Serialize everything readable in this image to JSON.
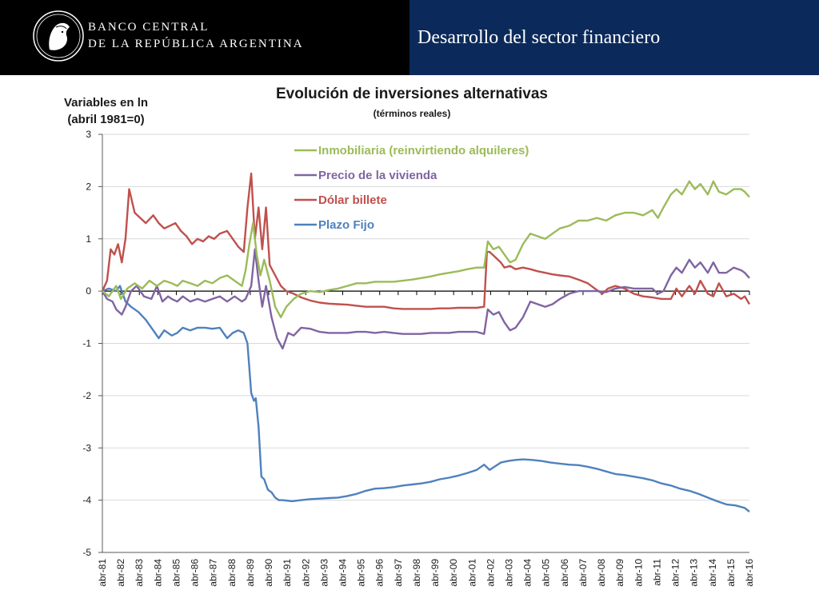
{
  "header": {
    "bank_line1": "BANCO CENTRAL",
    "bank_line2": "DE LA REPÚBLICA ARGENTINA",
    "page_title": "Desarrollo del sector financiero",
    "colors": {
      "left_bg": "#000000",
      "right_bg": "#0b2a5b"
    }
  },
  "chart_data": {
    "type": "line",
    "title": "Evolución de inversiones alternativas",
    "subtitle": "(términos reales)",
    "ylabel_line1": "Variables en ln",
    "ylabel_line2": "(abril 1981=0)",
    "ylim": [
      -5,
      3
    ],
    "yticks": [
      3,
      2,
      1,
      0,
      -1,
      -2,
      -3,
      -4,
      -5
    ],
    "xlim": [
      1981.25,
      2016.25
    ],
    "xticks": [
      "abr-81",
      "abr-82",
      "abr-83",
      "abr-84",
      "abr-85",
      "abr-86",
      "abr-87",
      "abr-88",
      "abr-89",
      "abr-90",
      "abr-91",
      "abr-92",
      "abr-93",
      "abr-94",
      "abr-95",
      "abr-96",
      "abr-97",
      "abr-98",
      "abr-99",
      "abr-00",
      "abr-01",
      "abr-02",
      "abr-03",
      "abr-04",
      "abr-05",
      "abr-06",
      "abr-07",
      "abr-08",
      "abr-09",
      "abr-10",
      "abr-11",
      "abr-12",
      "abr-13",
      "abr-14",
      "abr-15",
      "abr-16"
    ],
    "grid": "horizontal",
    "legend_position": "top-left",
    "series": [
      {
        "name": "Inmobiliaria (reinvirtiendo alquileres)",
        "color": "#9bbb59",
        "x": [
          1981.25,
          1981.6,
          1982.0,
          1982.25,
          1982.6,
          1983.0,
          1983.4,
          1983.8,
          1984.2,
          1984.6,
          1985.0,
          1985.3,
          1985.6,
          1986.0,
          1986.4,
          1986.8,
          1987.2,
          1987.6,
          1988.0,
          1988.4,
          1988.8,
          1989.0,
          1989.2,
          1989.4,
          1989.6,
          1989.8,
          1990.0,
          1990.3,
          1990.6,
          1990.9,
          1991.2,
          1991.6,
          1992.0,
          1992.5,
          1993.0,
          1993.5,
          1994.0,
          1994.5,
          1995.0,
          1995.5,
          1996.0,
          1996.5,
          1997.0,
          1997.5,
          1998.0,
          1998.5,
          1999.0,
          1999.5,
          2000.0,
          2000.5,
          2001.0,
          2001.5,
          2001.9,
          2002.1,
          2002.4,
          2002.7,
          2003.0,
          2003.3,
          2003.6,
          2004.0,
          2004.4,
          2004.8,
          2005.2,
          2005.6,
          2006.0,
          2006.5,
          2007.0,
          2007.5,
          2008.0,
          2008.5,
          2009.0,
          2009.5,
          2010.0,
          2010.5,
          2011.0,
          2011.3,
          2011.6,
          2012.0,
          2012.3,
          2012.6,
          2013.0,
          2013.3,
          2013.6,
          2014.0,
          2014.3,
          2014.6,
          2015.0,
          2015.4,
          2015.8,
          2016.0,
          2016.25
        ],
        "y": [
          0,
          -0.1,
          0.1,
          -0.15,
          0.05,
          0.15,
          0.05,
          0.2,
          0.1,
          0.2,
          0.15,
          0.1,
          0.2,
          0.15,
          0.1,
          0.2,
          0.15,
          0.25,
          0.3,
          0.2,
          0.1,
          0.4,
          0.9,
          1.3,
          0.7,
          0.3,
          0.6,
          0.2,
          -0.3,
          -0.5,
          -0.3,
          -0.15,
          -0.05,
          0.0,
          -0.02,
          0.02,
          0.05,
          0.1,
          0.15,
          0.15,
          0.18,
          0.18,
          0.18,
          0.2,
          0.22,
          0.25,
          0.28,
          0.32,
          0.35,
          0.38,
          0.42,
          0.45,
          0.45,
          0.95,
          0.8,
          0.85,
          0.7,
          0.55,
          0.6,
          0.9,
          1.1,
          1.05,
          1.0,
          1.1,
          1.2,
          1.25,
          1.35,
          1.35,
          1.4,
          1.35,
          1.45,
          1.5,
          1.5,
          1.45,
          1.55,
          1.4,
          1.6,
          1.85,
          1.95,
          1.85,
          2.1,
          1.95,
          2.05,
          1.85,
          2.1,
          1.9,
          1.85,
          1.95,
          1.95,
          1.9,
          1.8
        ]
      },
      {
        "name": "Precio de la vivienda",
        "color": "#8064a2",
        "x": [
          1981.25,
          1981.5,
          1981.8,
          1982.0,
          1982.3,
          1982.5,
          1982.8,
          1983.1,
          1983.5,
          1983.9,
          1984.2,
          1984.5,
          1984.8,
          1985.0,
          1985.3,
          1985.6,
          1986.0,
          1986.4,
          1986.8,
          1987.2,
          1987.6,
          1988.0,
          1988.4,
          1988.8,
          1989.0,
          1989.3,
          1989.5,
          1989.7,
          1989.9,
          1990.1,
          1990.4,
          1990.7,
          1991.0,
          1991.3,
          1991.6,
          1992.0,
          1992.5,
          1993.0,
          1993.5,
          1994.0,
          1994.5,
          1995.0,
          1995.5,
          1996.0,
          1996.5,
          1997.0,
          1997.5,
          1998.0,
          1998.5,
          1999.0,
          1999.5,
          2000.0,
          2000.5,
          2001.0,
          2001.5,
          2001.9,
          2002.1,
          2002.4,
          2002.7,
          2003.0,
          2003.3,
          2003.6,
          2004.0,
          2004.4,
          2004.8,
          2005.2,
          2005.6,
          2006.0,
          2006.5,
          2007.0,
          2007.5,
          2008.0,
          2008.5,
          2009.0,
          2009.5,
          2010.0,
          2010.5,
          2011.0,
          2011.3,
          2011.6,
          2012.0,
          2012.3,
          2012.6,
          2013.0,
          2013.3,
          2013.6,
          2014.0,
          2014.3,
          2014.6,
          2015.0,
          2015.4,
          2015.8,
          2016.0,
          2016.25
        ],
        "y": [
          0,
          -0.15,
          -0.2,
          -0.35,
          -0.45,
          -0.3,
          0.0,
          0.1,
          -0.1,
          -0.15,
          0.1,
          -0.2,
          -0.1,
          -0.15,
          -0.2,
          -0.1,
          -0.2,
          -0.15,
          -0.2,
          -0.15,
          -0.1,
          -0.2,
          -0.1,
          -0.2,
          -0.15,
          0.1,
          0.8,
          0.2,
          -0.3,
          0.1,
          -0.5,
          -0.9,
          -1.1,
          -0.8,
          -0.85,
          -0.7,
          -0.72,
          -0.78,
          -0.8,
          -0.8,
          -0.8,
          -0.78,
          -0.78,
          -0.8,
          -0.78,
          -0.8,
          -0.82,
          -0.82,
          -0.82,
          -0.8,
          -0.8,
          -0.8,
          -0.78,
          -0.78,
          -0.78,
          -0.82,
          -0.35,
          -0.45,
          -0.4,
          -0.6,
          -0.75,
          -0.7,
          -0.5,
          -0.2,
          -0.25,
          -0.3,
          -0.25,
          -0.15,
          -0.05,
          0.0,
          0.0,
          0.0,
          -0.02,
          0.05,
          0.08,
          0.05,
          0.05,
          0.05,
          -0.05,
          0.0,
          0.3,
          0.45,
          0.35,
          0.6,
          0.45,
          0.55,
          0.35,
          0.55,
          0.35,
          0.35,
          0.45,
          0.4,
          0.35,
          0.25
        ]
      },
      {
        "name": "Dólar billete",
        "color": "#c0504d",
        "x": [
          1981.25,
          1981.5,
          1981.7,
          1981.9,
          1982.1,
          1982.3,
          1982.5,
          1982.7,
          1983.0,
          1983.3,
          1983.6,
          1984.0,
          1984.3,
          1984.6,
          1984.9,
          1985.2,
          1985.5,
          1985.8,
          1986.1,
          1986.4,
          1986.7,
          1987.0,
          1987.3,
          1987.6,
          1988.0,
          1988.3,
          1988.6,
          1988.9,
          1989.1,
          1989.3,
          1989.5,
          1989.7,
          1989.9,
          1990.1,
          1990.3,
          1990.6,
          1990.9,
          1991.2,
          1991.6,
          1992.0,
          1992.5,
          1993.0,
          1993.5,
          1994.0,
          1994.5,
          1995.0,
          1995.5,
          1996.0,
          1996.5,
          1997.0,
          1997.5,
          1998.0,
          1998.5,
          1999.0,
          1999.5,
          2000.0,
          2000.5,
          2001.0,
          2001.5,
          2001.9,
          2002.05,
          2002.2,
          2002.5,
          2002.8,
          2003.0,
          2003.3,
          2003.6,
          2004.0,
          2004.4,
          2004.8,
          2005.2,
          2005.6,
          2006.0,
          2006.5,
          2007.0,
          2007.5,
          2008.0,
          2008.3,
          2008.6,
          2009.0,
          2009.5,
          2010.0,
          2010.5,
          2011.0,
          2011.5,
          2012.0,
          2012.3,
          2012.6,
          2013.0,
          2013.3,
          2013.6,
          2014.0,
          2014.3,
          2014.6,
          2015.0,
          2015.4,
          2015.8,
          2016.0,
          2016.25
        ],
        "y": [
          0,
          0.2,
          0.8,
          0.7,
          0.9,
          0.55,
          1.0,
          1.95,
          1.5,
          1.4,
          1.3,
          1.45,
          1.3,
          1.2,
          1.25,
          1.3,
          1.15,
          1.05,
          0.9,
          1.0,
          0.95,
          1.05,
          1.0,
          1.1,
          1.15,
          1.0,
          0.85,
          0.75,
          1.6,
          2.25,
          1.0,
          1.6,
          0.8,
          1.6,
          0.5,
          0.3,
          0.1,
          0.0,
          -0.05,
          -0.12,
          -0.18,
          -0.22,
          -0.24,
          -0.25,
          -0.26,
          -0.28,
          -0.3,
          -0.3,
          -0.3,
          -0.33,
          -0.34,
          -0.34,
          -0.34,
          -0.34,
          -0.33,
          -0.33,
          -0.32,
          -0.32,
          -0.32,
          -0.3,
          0.75,
          0.75,
          0.65,
          0.55,
          0.45,
          0.48,
          0.42,
          0.45,
          0.42,
          0.38,
          0.35,
          0.32,
          0.3,
          0.28,
          0.22,
          0.15,
          0.02,
          -0.05,
          0.05,
          0.1,
          0.05,
          -0.05,
          -0.1,
          -0.12,
          -0.15,
          -0.15,
          0.05,
          -0.1,
          0.1,
          -0.05,
          0.2,
          -0.05,
          -0.1,
          0.15,
          -0.1,
          -0.05,
          -0.15,
          -0.1,
          -0.25
        ]
      },
      {
        "name": "Plazo Fijo",
        "color": "#4f81bd",
        "x": [
          1981.25,
          1981.6,
          1982.0,
          1982.2,
          1982.5,
          1982.8,
          1983.2,
          1983.6,
          1984.0,
          1984.3,
          1984.6,
          1985.0,
          1985.3,
          1985.6,
          1986.0,
          1986.4,
          1986.8,
          1987.2,
          1987.6,
          1988.0,
          1988.3,
          1988.6,
          1988.9,
          1989.1,
          1989.3,
          1989.45,
          1989.55,
          1989.7,
          1989.85,
          1990.0,
          1990.2,
          1990.4,
          1990.6,
          1990.8,
          1991.0,
          1991.5,
          1992.0,
          1992.5,
          1993.0,
          1993.5,
          1994.0,
          1994.5,
          1995.0,
          1995.5,
          1996.0,
          1996.5,
          1997.0,
          1997.5,
          1998.0,
          1998.5,
          1999.0,
          1999.5,
          2000.0,
          2000.5,
          2001.0,
          2001.5,
          2001.9,
          2002.2,
          2002.5,
          2002.8,
          2003.2,
          2003.6,
          2004.0,
          2004.5,
          2005.0,
          2005.5,
          2006.0,
          2006.5,
          2007.0,
          2007.5,
          2008.0,
          2008.5,
          2009.0,
          2009.5,
          2010.0,
          2010.5,
          2011.0,
          2011.5,
          2012.0,
          2012.5,
          2013.0,
          2013.5,
          2014.0,
          2014.5,
          2015.0,
          2015.5,
          2016.0,
          2016.25
        ],
        "y": [
          0,
          0.05,
          0.0,
          0.1,
          -0.2,
          -0.3,
          -0.4,
          -0.55,
          -0.75,
          -0.9,
          -0.75,
          -0.85,
          -0.8,
          -0.7,
          -0.75,
          -0.7,
          -0.7,
          -0.72,
          -0.7,
          -0.9,
          -0.8,
          -0.75,
          -0.8,
          -1.0,
          -1.95,
          -2.1,
          -2.05,
          -2.6,
          -3.55,
          -3.6,
          -3.8,
          -3.85,
          -3.95,
          -4.0,
          -4.0,
          -4.02,
          -4.0,
          -3.98,
          -3.97,
          -3.96,
          -3.95,
          -3.92,
          -3.88,
          -3.82,
          -3.78,
          -3.77,
          -3.75,
          -3.72,
          -3.7,
          -3.68,
          -3.65,
          -3.6,
          -3.57,
          -3.53,
          -3.48,
          -3.42,
          -3.32,
          -3.42,
          -3.35,
          -3.28,
          -3.25,
          -3.23,
          -3.22,
          -3.23,
          -3.25,
          -3.28,
          -3.3,
          -3.32,
          -3.33,
          -3.36,
          -3.4,
          -3.45,
          -3.5,
          -3.52,
          -3.55,
          -3.58,
          -3.62,
          -3.68,
          -3.72,
          -3.78,
          -3.82,
          -3.88,
          -3.95,
          -4.02,
          -4.08,
          -4.1,
          -4.15,
          -4.22
        ]
      }
    ]
  }
}
